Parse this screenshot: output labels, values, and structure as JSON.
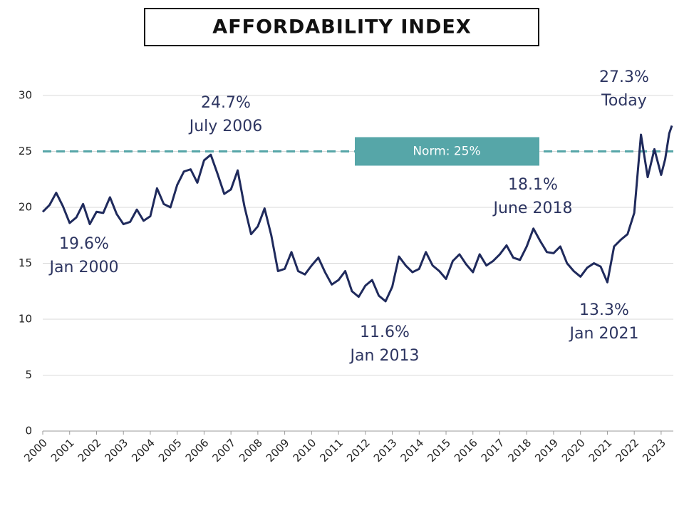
{
  "chart_data": {
    "type": "line",
    "title": "AFFORDABILITY INDEX",
    "x": [
      2000,
      2000.25,
      2000.5,
      2000.75,
      2001,
      2001.25,
      2001.5,
      2001.75,
      2002,
      2002.25,
      2002.5,
      2002.75,
      2003,
      2003.25,
      2003.5,
      2003.75,
      2004,
      2004.25,
      2004.5,
      2004.75,
      2005,
      2005.25,
      2005.5,
      2005.75,
      2006,
      2006.25,
      2006.5,
      2006.75,
      2007,
      2007.25,
      2007.5,
      2007.75,
      2008,
      2008.25,
      2008.5,
      2008.75,
      2009,
      2009.25,
      2009.5,
      2009.75,
      2010,
      2010.25,
      2010.5,
      2010.75,
      2011,
      2011.25,
      2011.5,
      2011.75,
      2012,
      2012.25,
      2012.5,
      2012.75,
      2013,
      2013.25,
      2013.5,
      2013.75,
      2014,
      2014.25,
      2014.5,
      2014.75,
      2015,
      2015.25,
      2015.5,
      2015.75,
      2016,
      2016.25,
      2016.5,
      2016.75,
      2017,
      2017.25,
      2017.5,
      2017.75,
      2018,
      2018.25,
      2018.5,
      2018.75,
      2019,
      2019.25,
      2019.5,
      2019.75,
      2020,
      2020.25,
      2020.5,
      2020.75,
      2021,
      2021.25,
      2021.5,
      2021.75,
      2022,
      2022.25,
      2022.5,
      2022.75,
      2023,
      2023.15,
      2023.3,
      2023.4
    ],
    "series": [
      {
        "color": "#1f2a5c",
        "values": [
          19.6,
          20.2,
          21.3,
          20.1,
          18.6,
          19.1,
          20.3,
          18.5,
          19.6,
          19.5,
          20.9,
          19.4,
          18.5,
          18.7,
          19.8,
          18.8,
          19.2,
          21.7,
          20.3,
          20.0,
          22.0,
          23.2,
          23.4,
          22.2,
          24.2,
          24.7,
          23.0,
          21.2,
          21.6,
          23.3,
          20.1,
          17.6,
          18.3,
          19.9,
          17.5,
          14.3,
          14.5,
          16.0,
          14.3,
          14.0,
          14.8,
          15.5,
          14.2,
          13.1,
          13.5,
          14.3,
          12.5,
          12.0,
          13.0,
          13.5,
          12.1,
          11.6,
          12.9,
          15.6,
          14.8,
          14.2,
          14.5,
          16.0,
          14.8,
          14.3,
          13.6,
          15.2,
          15.8,
          14.9,
          14.2,
          15.8,
          14.8,
          15.2,
          15.8,
          16.6,
          15.5,
          15.3,
          16.5,
          18.1,
          17.0,
          16.0,
          15.9,
          16.5,
          15.0,
          14.3,
          13.8,
          14.6,
          15.0,
          14.7,
          13.3,
          16.5,
          17.1,
          17.6,
          19.5,
          26.5,
          22.7,
          25.2,
          22.9,
          24.3,
          26.6,
          27.3
        ]
      }
    ],
    "xlim": [
      2000,
      2023.4
    ],
    "xticks": [
      2000,
      2001,
      2002,
      2003,
      2004,
      2005,
      2006,
      2007,
      2008,
      2009,
      2010,
      2011,
      2012,
      2013,
      2014,
      2015,
      2016,
      2017,
      2018,
      2019,
      2020,
      2021,
      2022,
      2023
    ],
    "ylim": [
      0,
      30
    ],
    "yticks": [
      0,
      5,
      10,
      15,
      20,
      25,
      30
    ],
    "grid": true,
    "norm": {
      "value": 25,
      "label": "Norm: 25%",
      "color": "#56a6a8"
    },
    "annotations": [
      [
        "19.6%",
        "Jan 2000"
      ],
      [
        "24.7%",
        "July 2006"
      ],
      [
        "11.6%",
        "Jan 2013"
      ],
      [
        "18.1%",
        "June 2018"
      ],
      [
        "13.3%",
        "Jan 2021"
      ],
      [
        "27.3%",
        "Today"
      ]
    ]
  }
}
